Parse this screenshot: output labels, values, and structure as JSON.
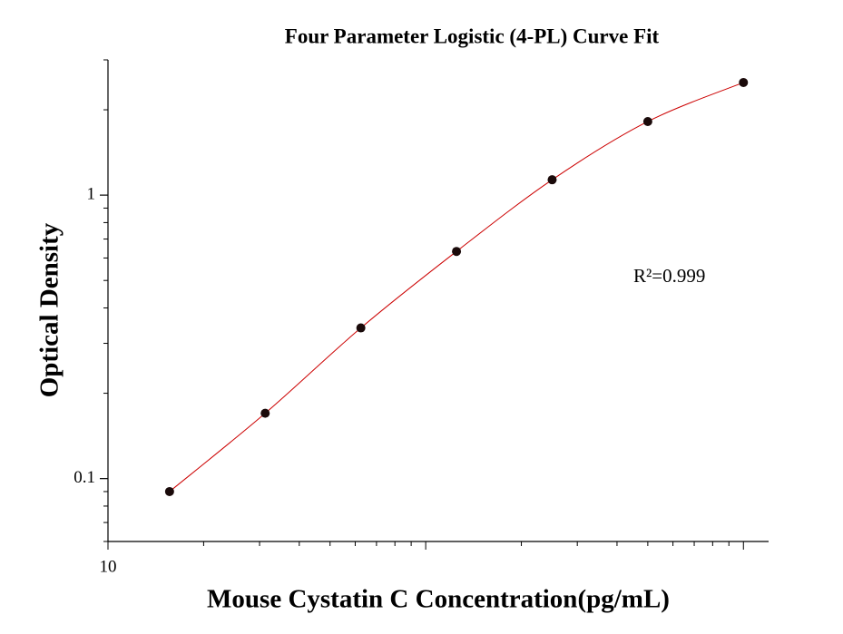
{
  "chart_data": {
    "type": "scatter",
    "title": "Four Parameter Logistic (4-PL) Curve Fit",
    "xlabel": "Mouse Cystatin C Concentration(pg/mL)",
    "ylabel": "Optical Density",
    "annotation": "R²=0.999",
    "x": [
      15.625,
      31.25,
      62.5,
      125,
      250,
      500,
      1000
    ],
    "values": [
      0.09,
      0.17,
      0.34,
      0.633,
      1.133,
      1.818,
      2.496
    ],
    "color": "#1a0a0a",
    "fit_color": "#cc0000",
    "xscale": "log",
    "yscale": "log",
    "xlim": [
      10,
      1200
    ],
    "ylim": [
      0.06,
      3
    ],
    "xticks": [
      10
    ],
    "yticks": [
      0.1,
      1
    ],
    "grid": false
  }
}
